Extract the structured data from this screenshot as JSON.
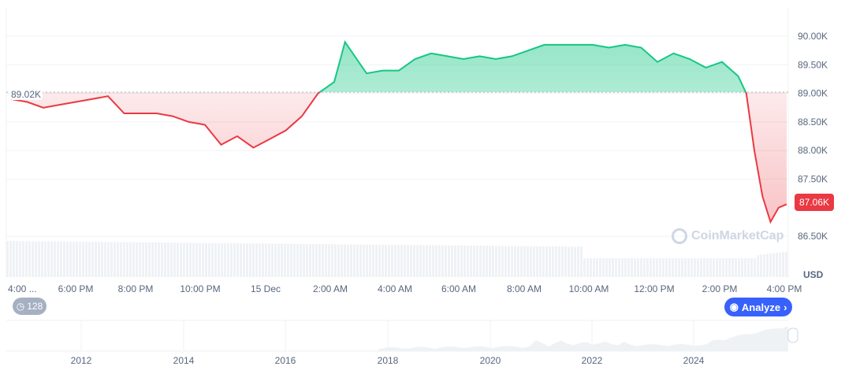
{
  "chart_data": {
    "type": "line",
    "currency": "USD",
    "baseline": 89.02,
    "baseline_label": "89.02K",
    "current_label": "87.06K",
    "y_ticks": [
      "90.00K",
      "89.50K",
      "89.00K",
      "88.50K",
      "88.00K",
      "87.50K",
      "86.50K"
    ],
    "y_tick_values": [
      90.0,
      89.5,
      89.0,
      88.5,
      88.0,
      87.5,
      86.5
    ],
    "ylim": [
      86.3,
      90.3
    ],
    "unit": "K",
    "x_ticks": [
      "4:00 ...",
      "6:00 PM",
      "8:00 PM",
      "10:00 PM",
      "15 Dec",
      "2:00 AM",
      "4:00 AM",
      "6:00 AM",
      "8:00 AM",
      "10:00 AM",
      "12:00 PM",
      "2:00 PM",
      "4:00 PM"
    ],
    "colors": {
      "up": "#16c784",
      "down": "#ea3943",
      "accent": "#3861fb"
    },
    "x": [
      "14 Dec 16:00",
      "14 Dec 16:30",
      "14 Dec 17:00",
      "14 Dec 17:30",
      "14 Dec 18:00",
      "14 Dec 18:30",
      "14 Dec 19:00",
      "14 Dec 19:30",
      "14 Dec 20:00",
      "14 Dec 20:30",
      "14 Dec 21:00",
      "14 Dec 21:30",
      "14 Dec 22:00",
      "14 Dec 22:30",
      "14 Dec 23:00",
      "14 Dec 23:30",
      "15 Dec 00:00",
      "15 Dec 00:30",
      "15 Dec 01:00",
      "15 Dec 01:30",
      "15 Dec 02:00",
      "15 Dec 02:20",
      "15 Dec 03:00",
      "15 Dec 03:30",
      "15 Dec 04:00",
      "15 Dec 04:30",
      "15 Dec 05:00",
      "15 Dec 05:30",
      "15 Dec 06:00",
      "15 Dec 06:30",
      "15 Dec 07:00",
      "15 Dec 07:30",
      "15 Dec 08:00",
      "15 Dec 08:30",
      "15 Dec 09:00",
      "15 Dec 09:30",
      "15 Dec 10:00",
      "15 Dec 10:30",
      "15 Dec 11:00",
      "15 Dec 11:30",
      "15 Dec 12:00",
      "15 Dec 12:30",
      "15 Dec 13:00",
      "15 Dec 13:30",
      "15 Dec 14:00",
      "15 Dec 14:30",
      "15 Dec 14:45",
      "15 Dec 15:00",
      "15 Dec 15:15",
      "15 Dec 15:30",
      "15 Dec 15:45",
      "15 Dec 16:00"
    ],
    "values": [
      88.9,
      88.85,
      88.75,
      88.8,
      88.85,
      88.9,
      88.95,
      88.65,
      88.65,
      88.65,
      88.6,
      88.5,
      88.45,
      88.1,
      88.25,
      88.05,
      88.2,
      88.35,
      88.6,
      89.0,
      89.2,
      89.9,
      89.35,
      89.4,
      89.4,
      89.6,
      89.7,
      89.65,
      89.6,
      89.65,
      89.6,
      89.65,
      89.75,
      89.85,
      89.85,
      89.85,
      89.85,
      89.8,
      89.85,
      89.8,
      89.55,
      89.7,
      89.6,
      89.45,
      89.55,
      89.3,
      89.0,
      88.0,
      87.2,
      86.75,
      87.0,
      87.06
    ]
  },
  "navigator": {
    "years": [
      "2012",
      "2014",
      "2016",
      "2018",
      "2020",
      "2022",
      "2024"
    ]
  },
  "controls": {
    "history_count": "128",
    "analyze_label": "Analyze",
    "watermark": "CoinMarketCap"
  }
}
